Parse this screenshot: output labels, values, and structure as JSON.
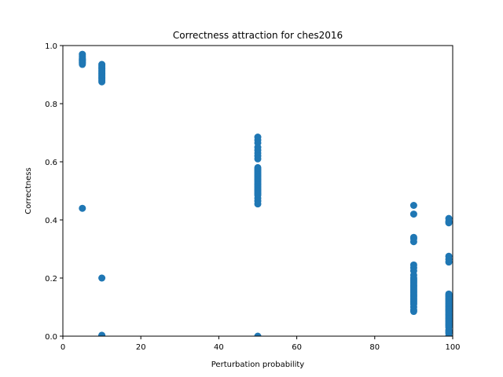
{
  "chart_data": {
    "type": "scatter",
    "title": "Correctness attraction for ches2016",
    "xlabel": "Perturbation probability",
    "ylabel": "Correctness",
    "xlim": [
      0,
      100
    ],
    "ylim": [
      0,
      1.0
    ],
    "xticks": [
      0,
      20,
      40,
      60,
      80,
      100
    ],
    "yticks": [
      0.0,
      0.2,
      0.4,
      0.6,
      0.8,
      1.0
    ],
    "xtick_labels": [
      "0",
      "20",
      "40",
      "60",
      "80",
      "100"
    ],
    "ytick_labels": [
      "0.0",
      "0.2",
      "0.4",
      "0.6",
      "0.8",
      "1.0"
    ],
    "grid": false,
    "marker_color": "#1f77b4",
    "series": [
      {
        "x": [
          5,
          5,
          5,
          5,
          5,
          5,
          5,
          5,
          5,
          5,
          5,
          5,
          10,
          10,
          10,
          10,
          10,
          10,
          10,
          10,
          10,
          10,
          10,
          10,
          10,
          10,
          10,
          10,
          10,
          10,
          50,
          50,
          50,
          50,
          50,
          50,
          50,
          50,
          50,
          50,
          50,
          50,
          50,
          50,
          50,
          50,
          50,
          50,
          50,
          50,
          50,
          50,
          50,
          50,
          50,
          50,
          50,
          50,
          50,
          50,
          50,
          50,
          90,
          90,
          90,
          90,
          90,
          90,
          90,
          90,
          90,
          90,
          90,
          90,
          90,
          90,
          90,
          90,
          90,
          90,
          90,
          90,
          90,
          90,
          90,
          90,
          90,
          90,
          90,
          90,
          90,
          90,
          90,
          99,
          99,
          99,
          99,
          99,
          99,
          99,
          99,
          99,
          99,
          99,
          99,
          99,
          99,
          99,
          99,
          99,
          99,
          99,
          99,
          99,
          99,
          99,
          99,
          99,
          99,
          99,
          99,
          99,
          99,
          99,
          99,
          99,
          99
        ],
        "y": [
          0.97,
          0.965,
          0.96,
          0.955,
          0.952,
          0.95,
          0.948,
          0.945,
          0.942,
          0.94,
          0.935,
          0.44,
          0.935,
          0.93,
          0.925,
          0.92,
          0.915,
          0.91,
          0.905,
          0.9,
          0.895,
          0.89,
          0.885,
          0.88,
          0.875,
          0.2,
          0.003,
          0.002,
          0.001,
          0.0,
          0.685,
          0.675,
          0.665,
          0.65,
          0.64,
          0.63,
          0.62,
          0.61,
          0.58,
          0.575,
          0.57,
          0.565,
          0.56,
          0.555,
          0.55,
          0.545,
          0.54,
          0.535,
          0.53,
          0.525,
          0.52,
          0.515,
          0.51,
          0.505,
          0.5,
          0.495,
          0.49,
          0.485,
          0.475,
          0.465,
          0.455,
          0.0,
          0.45,
          0.42,
          0.34,
          0.335,
          0.325,
          0.245,
          0.235,
          0.225,
          0.21,
          0.2,
          0.195,
          0.19,
          0.185,
          0.18,
          0.175,
          0.17,
          0.165,
          0.16,
          0.155,
          0.15,
          0.145,
          0.14,
          0.135,
          0.13,
          0.125,
          0.12,
          0.115,
          0.11,
          0.1,
          0.09,
          0.085,
          0.405,
          0.395,
          0.39,
          0.275,
          0.265,
          0.255,
          0.145,
          0.14,
          0.135,
          0.13,
          0.125,
          0.12,
          0.115,
          0.11,
          0.105,
          0.1,
          0.095,
          0.09,
          0.085,
          0.08,
          0.075,
          0.07,
          0.065,
          0.06,
          0.055,
          0.05,
          0.045,
          0.04,
          0.035,
          0.03,
          0.02,
          0.015,
          0.01,
          0.0
        ]
      }
    ]
  }
}
